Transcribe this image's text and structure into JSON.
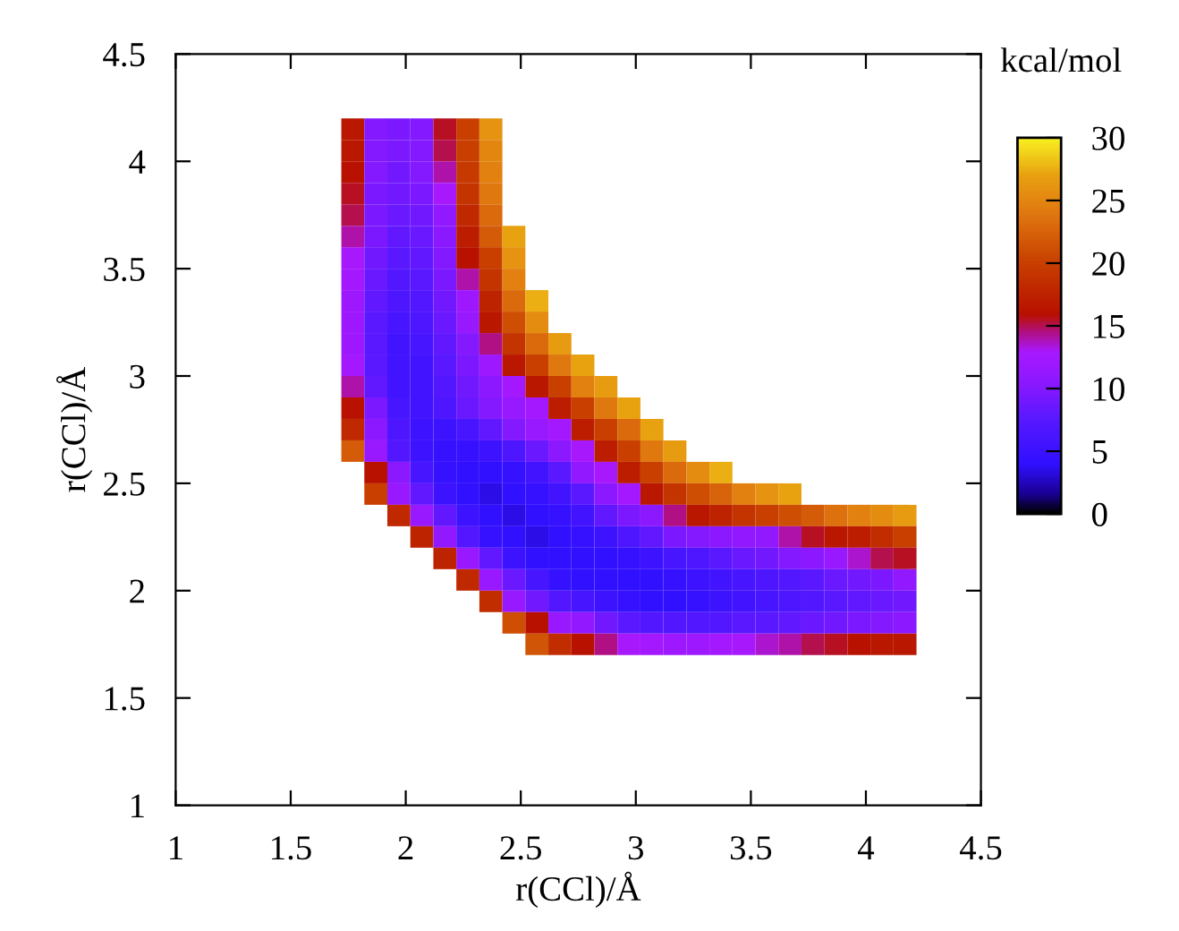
{
  "chart_data": {
    "type": "heatmap",
    "xlabel": "r(CCl)/Å",
    "ylabel": "r(CCl)/Å",
    "clabel": "kcal/mol",
    "x": [
      1.77,
      1.87,
      1.97,
      2.07,
      2.17,
      2.27,
      2.37,
      2.47,
      2.57,
      2.67,
      2.77,
      2.87,
      2.97,
      3.07,
      3.17,
      3.27,
      3.37,
      3.47,
      3.57,
      3.67,
      3.77,
      3.87,
      3.97,
      4.07,
      4.17
    ],
    "y": [
      4.15,
      4.05,
      3.95,
      3.85,
      3.75,
      3.65,
      3.55,
      3.45,
      3.35,
      3.25,
      3.15,
      3.05,
      2.95,
      2.85,
      2.75,
      2.65,
      2.55,
      2.45,
      2.35,
      2.25,
      2.15,
      2.05,
      1.95,
      1.85,
      1.75
    ],
    "cells": [
      [
        16.5,
        10,
        9.5,
        10,
        15.5,
        20,
        26,
        null,
        null,
        null,
        null,
        null,
        null,
        null,
        null,
        null,
        null,
        null,
        null,
        null,
        null,
        null,
        null,
        null,
        null
      ],
      [
        16.5,
        10,
        9.5,
        10,
        15,
        20,
        25,
        null,
        null,
        null,
        null,
        null,
        null,
        null,
        null,
        null,
        null,
        null,
        null,
        null,
        null,
        null,
        null,
        null,
        null
      ],
      [
        16,
        10,
        9,
        10,
        14,
        19.5,
        24.5,
        null,
        null,
        null,
        null,
        null,
        null,
        null,
        null,
        null,
        null,
        null,
        null,
        null,
        null,
        null,
        null,
        null,
        null
      ],
      [
        15.5,
        9.5,
        9,
        9.5,
        13,
        19,
        24,
        null,
        null,
        null,
        null,
        null,
        null,
        null,
        null,
        null,
        null,
        null,
        null,
        null,
        null,
        null,
        null,
        null,
        null
      ],
      [
        15,
        9.5,
        8.5,
        9,
        11,
        18,
        23,
        null,
        null,
        null,
        null,
        null,
        null,
        null,
        null,
        null,
        null,
        null,
        null,
        null,
        null,
        null,
        null,
        null,
        null
      ],
      [
        14,
        9.5,
        8,
        8.5,
        10.5,
        17,
        22,
        27,
        null,
        null,
        null,
        null,
        null,
        null,
        null,
        null,
        null,
        null,
        null,
        null,
        null,
        null,
        null,
        null,
        null
      ],
      [
        13,
        9,
        7.5,
        8,
        10,
        16,
        20,
        26,
        null,
        null,
        null,
        null,
        null,
        null,
        null,
        null,
        null,
        null,
        null,
        null,
        null,
        null,
        null,
        null,
        null
      ],
      [
        12.5,
        8.5,
        7,
        7.5,
        9.5,
        14,
        19,
        24.5,
        null,
        null,
        null,
        null,
        null,
        null,
        null,
        null,
        null,
        null,
        null,
        null,
        null,
        null,
        null,
        null,
        null
      ],
      [
        12,
        8,
        6.5,
        7,
        9,
        12,
        17.5,
        23,
        27.5,
        null,
        null,
        null,
        null,
        null,
        null,
        null,
        null,
        null,
        null,
        null,
        null,
        null,
        null,
        null,
        null
      ],
      [
        12,
        7.5,
        6,
        6.5,
        8.5,
        11.5,
        16.5,
        21,
        25.5,
        null,
        null,
        null,
        null,
        null,
        null,
        null,
        null,
        null,
        null,
        null,
        null,
        null,
        null,
        null,
        null
      ],
      [
        12,
        7.5,
        5.5,
        6,
        8,
        10,
        14.5,
        19,
        23,
        26.5,
        null,
        null,
        null,
        null,
        null,
        null,
        null,
        null,
        null,
        null,
        null,
        null,
        null,
        null,
        null
      ],
      [
        12.5,
        7.5,
        5.5,
        5.5,
        7.5,
        9.5,
        12,
        16.5,
        20,
        24,
        27,
        null,
        null,
        null,
        null,
        null,
        null,
        null,
        null,
        null,
        null,
        null,
        null,
        null,
        null
      ],
      [
        14,
        8,
        5.5,
        5.5,
        7,
        9,
        10.5,
        12.5,
        16.5,
        20,
        24.5,
        26.5,
        null,
        null,
        null,
        null,
        null,
        null,
        null,
        null,
        null,
        null,
        null,
        null,
        null
      ],
      [
        16,
        9.5,
        6,
        5.5,
        6.5,
        8.5,
        10,
        11.5,
        12.5,
        17,
        20,
        24,
        27,
        null,
        null,
        null,
        null,
        null,
        null,
        null,
        null,
        null,
        null,
        null,
        null
      ],
      [
        18,
        10.5,
        6.5,
        5,
        5,
        6,
        8,
        10,
        11.5,
        12.5,
        17,
        20,
        23,
        27,
        null,
        null,
        null,
        null,
        null,
        null,
        null,
        null,
        null,
        null,
        null
      ],
      [
        22,
        11.5,
        7,
        5,
        4.5,
        4.5,
        5,
        6.5,
        8.5,
        10.5,
        13,
        17,
        20,
        24,
        26.5,
        null,
        null,
        null,
        null,
        null,
        null,
        null,
        null,
        null,
        null
      ],
      [
        null,
        16,
        10.5,
        6,
        4.5,
        4,
        4,
        4.5,
        5.5,
        7.5,
        11,
        13,
        17,
        20,
        23,
        25.5,
        27.5,
        null,
        null,
        null,
        null,
        null,
        null,
        null,
        null
      ],
      [
        null,
        20,
        11.5,
        8,
        5,
        4,
        3.5,
        4,
        4.5,
        5.5,
        7.5,
        10.5,
        12.5,
        16.5,
        19,
        21,
        22.5,
        24.5,
        26,
        27,
        null,
        null,
        null,
        null,
        null
      ],
      [
        null,
        null,
        18,
        11.5,
        8,
        5,
        4,
        3.5,
        4,
        4.5,
        5.5,
        8,
        9.5,
        10.5,
        14.5,
        16.5,
        17.5,
        19,
        20,
        21,
        22,
        23.5,
        24.5,
        25.5,
        26.5
      ],
      [
        null,
        null,
        null,
        17.5,
        11,
        7,
        4.5,
        4,
        3.5,
        4,
        4.5,
        5,
        6.5,
        8,
        9.5,
        10,
        10.5,
        11,
        11,
        14,
        15.5,
        16.5,
        17,
        18.5,
        20
      ],
      [
        null,
        null,
        null,
        null,
        17.5,
        11.5,
        8,
        5,
        4,
        4,
        4,
        4,
        4.5,
        5,
        6,
        6.5,
        7.5,
        8.5,
        9,
        10,
        10.5,
        11.5,
        13.5,
        15,
        15.5
      ],
      [
        null,
        null,
        null,
        null,
        null,
        18,
        11.5,
        8.5,
        6,
        4.5,
        4,
        4,
        4,
        4,
        4.5,
        5,
        5.5,
        6,
        6.5,
        7,
        7.5,
        8.5,
        9,
        9.5,
        11
      ],
      [
        null,
        null,
        null,
        null,
        null,
        null,
        18.5,
        11.5,
        9,
        7,
        6,
        5,
        4.5,
        4,
        4,
        4.5,
        5,
        5.5,
        6,
        6.5,
        7,
        7.5,
        8,
        8.5,
        9
      ],
      [
        null,
        null,
        null,
        null,
        null,
        null,
        null,
        21,
        16,
        11.5,
        11,
        9,
        7.5,
        7,
        7,
        7,
        7,
        7.5,
        7.5,
        8,
        8.5,
        9,
        9.5,
        10,
        10.5
      ],
      [
        null,
        null,
        null,
        null,
        null,
        null,
        null,
        null,
        21.5,
        18.5,
        16,
        14.5,
        13,
        12.5,
        12,
        12,
        12.5,
        13,
        13.5,
        14,
        15,
        15.5,
        16,
        16.5,
        16.5
      ]
    ],
    "clim": [
      0,
      30
    ],
    "cticks": [
      0,
      5,
      10,
      15,
      20,
      25,
      30
    ],
    "xlim": [
      1,
      4.5
    ],
    "ylim": [
      1,
      4.5
    ],
    "xticks": [
      1,
      1.5,
      2,
      2.5,
      3,
      3.5,
      4,
      4.5
    ],
    "yticks": [
      1,
      1.5,
      2,
      2.5,
      3,
      3.5,
      4,
      4.5
    ]
  }
}
